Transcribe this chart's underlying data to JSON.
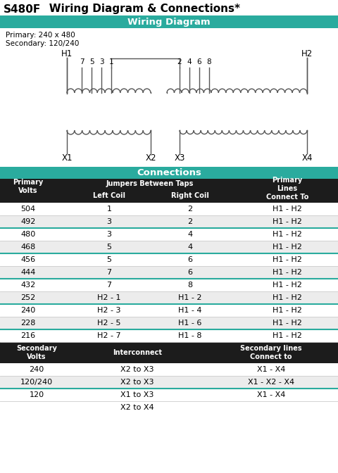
{
  "title_bold": "S480F",
  "title_rest": "   Wiring Diagram & Connections*",
  "teal_color": "#2aab9e",
  "dark_color": "#1c1c1c",
  "white": "#ffffff",
  "light_gray": "#e8e8e8",
  "line_color": "#555555",
  "header1_text": "Wiring Diagram",
  "header2_text": "Connections",
  "primary_text": "Primary: 240 x 480",
  "secondary_text": "Secondary: 120/240",
  "conn_rows": [
    [
      "504",
      "1",
      "2",
      "H1 - H2"
    ],
    [
      "492",
      "3",
      "2",
      "H1 - H2"
    ],
    [
      "480",
      "3",
      "4",
      "H1 - H2"
    ],
    [
      "468",
      "5",
      "4",
      "H1 - H2"
    ],
    [
      "456",
      "5",
      "6",
      "H1 - H2"
    ],
    [
      "444",
      "7",
      "6",
      "H1 - H2"
    ],
    [
      "432",
      "7",
      "8",
      "H1 - H2"
    ],
    [
      "252",
      "H2 - 1",
      "H1 - 2",
      "H1 - H2"
    ],
    [
      "240",
      "H2 - 3",
      "H1 - 4",
      "H1 - H2"
    ],
    [
      "228",
      "H2 - 5",
      "H1 - 6",
      "H1 - H2"
    ],
    [
      "216",
      "H2 - 7",
      "H1 - 8",
      "H1 - H2"
    ]
  ],
  "teal_dividers_after_rows": [
    1,
    3,
    5,
    7,
    9
  ],
  "sec_rows": [
    [
      "240",
      "X2 to X3",
      "X1 - X4"
    ],
    [
      "120/240",
      "X2 to X3",
      "X1 - X2 - X4"
    ],
    [
      "120",
      "X1 to X3",
      "X1 - X4"
    ],
    [
      "",
      "X2 to X4",
      ""
    ]
  ],
  "sec_teal_after": [
    1
  ]
}
